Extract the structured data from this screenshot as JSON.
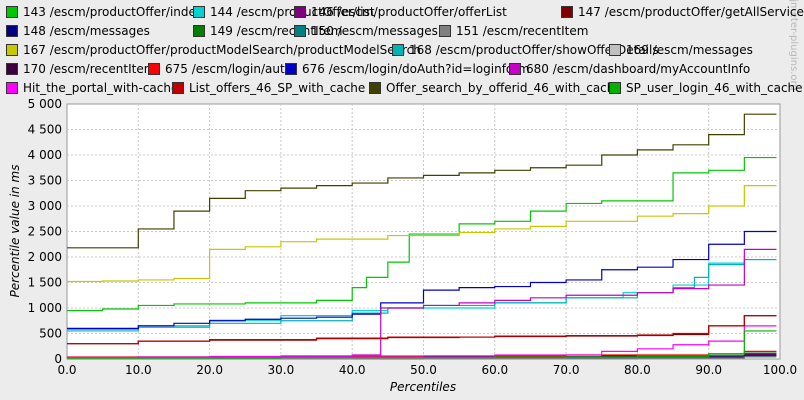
{
  "chart_data": {
    "type": "line",
    "title": "",
    "xlabel": "Percentiles",
    "ylabel": "Percentile value in ms",
    "xlim": [
      0,
      100
    ],
    "ylim": [
      0,
      5000
    ],
    "x_ticks": [
      "0.0",
      "10.0",
      "20.0",
      "30.0",
      "40.0",
      "50.0",
      "60.0",
      "70.0",
      "80.0",
      "90.0",
      "100.0"
    ],
    "y_ticks": [
      "0",
      "500",
      "1 000",
      "1 500",
      "2 000",
      "2 500",
      "3 000",
      "3 500",
      "4 000",
      "4 500",
      "5 000"
    ],
    "grid": true,
    "legend_position": "top",
    "watermark": "jmeter-plugins.org",
    "series": [
      {
        "name": "143 /escm/productOffer/index",
        "color": "#00c800",
        "steps": [
          [
            0,
            950
          ],
          [
            5,
            980
          ],
          [
            10,
            1050
          ],
          [
            15,
            1080
          ],
          [
            25,
            1100
          ],
          [
            35,
            1150
          ],
          [
            40,
            1400
          ],
          [
            42,
            1600
          ],
          [
            45,
            1900
          ],
          [
            48,
            2450
          ],
          [
            55,
            2650
          ],
          [
            60,
            2700
          ],
          [
            65,
            2900
          ],
          [
            70,
            3050
          ],
          [
            75,
            3100
          ],
          [
            85,
            3650
          ],
          [
            90,
            3700
          ],
          [
            95,
            3950
          ],
          [
            99,
            3950
          ]
        ]
      },
      {
        "name": "144 /escm/productOffer/list",
        "color": "#00d2d2",
        "steps": [
          [
            0,
            580
          ],
          [
            10,
            620
          ],
          [
            20,
            760
          ],
          [
            30,
            850
          ],
          [
            40,
            950
          ],
          [
            45,
            1000
          ],
          [
            50,
            1000
          ],
          [
            60,
            1100
          ],
          [
            70,
            1200
          ],
          [
            78,
            1300
          ],
          [
            85,
            1450
          ],
          [
            90,
            1880
          ],
          [
            95,
            1950
          ],
          [
            99,
            1950
          ]
        ]
      },
      {
        "name": "146 /escm/productOffer/offerList",
        "color": "#800080",
        "steps": [
          [
            0,
            30
          ],
          [
            20,
            35
          ],
          [
            40,
            40
          ],
          [
            60,
            50
          ],
          [
            80,
            60
          ],
          [
            95,
            80
          ],
          [
            99,
            80
          ]
        ]
      },
      {
        "name": "147 /escm/productOffer/getAllService",
        "color": "#800000",
        "steps": [
          [
            0,
            300
          ],
          [
            10,
            350
          ],
          [
            20,
            370
          ],
          [
            35,
            400
          ],
          [
            45,
            420
          ],
          [
            55,
            430
          ],
          [
            60,
            440
          ],
          [
            70,
            450
          ],
          [
            80,
            460
          ],
          [
            85,
            480
          ],
          [
            90,
            650
          ],
          [
            95,
            850
          ],
          [
            99,
            850
          ]
        ]
      },
      {
        "name": "148 /escm/messages",
        "color": "#000080",
        "steps": [
          [
            0,
            10
          ],
          [
            20,
            15
          ],
          [
            40,
            20
          ],
          [
            60,
            25
          ],
          [
            80,
            35
          ],
          [
            95,
            60
          ],
          [
            99,
            60
          ]
        ]
      },
      {
        "name": "149 /escm/recentItem",
        "color": "#008000",
        "steps": [
          [
            0,
            15
          ],
          [
            30,
            25
          ],
          [
            50,
            30
          ],
          [
            70,
            40
          ],
          [
            90,
            80
          ],
          [
            95,
            130
          ],
          [
            99,
            130
          ]
        ]
      },
      {
        "name": "150 /escm/messages",
        "color": "#008080",
        "steps": [
          [
            0,
            5
          ],
          [
            50,
            10
          ],
          [
            80,
            20
          ],
          [
            95,
            50
          ],
          [
            99,
            50
          ]
        ]
      },
      {
        "name": "151 /escm/recentItem",
        "color": "#808080",
        "steps": [
          [
            0,
            5
          ],
          [
            40,
            10
          ],
          [
            70,
            15
          ],
          [
            95,
            40
          ],
          [
            99,
            40
          ]
        ]
      },
      {
        "name": "167 /escm/productOffer/productModelSearch/productModelSearch",
        "color": "#c8c800",
        "steps": [
          [
            0,
            1520
          ],
          [
            5,
            1530
          ],
          [
            10,
            1550
          ],
          [
            15,
            1580
          ],
          [
            20,
            2150
          ],
          [
            25,
            2200
          ],
          [
            30,
            2300
          ],
          [
            35,
            2350
          ],
          [
            45,
            2420
          ],
          [
            55,
            2480
          ],
          [
            60,
            2550
          ],
          [
            65,
            2600
          ],
          [
            70,
            2700
          ],
          [
            80,
            2800
          ],
          [
            85,
            2850
          ],
          [
            90,
            3000
          ],
          [
            95,
            3400
          ],
          [
            99,
            3400
          ]
        ]
      },
      {
        "name": "168 /escm/productOffer/showOfferDetails",
        "color": "#00b4b4",
        "steps": [
          [
            0,
            550
          ],
          [
            10,
            650
          ],
          [
            20,
            700
          ],
          [
            30,
            750
          ],
          [
            40,
            900
          ],
          [
            45,
            1000
          ],
          [
            50,
            1050
          ],
          [
            60,
            1100
          ],
          [
            70,
            1200
          ],
          [
            80,
            1300
          ],
          [
            85,
            1400
          ],
          [
            88,
            1600
          ],
          [
            90,
            1850
          ],
          [
            95,
            1950
          ],
          [
            99,
            1950
          ]
        ]
      },
      {
        "name": "169 /escm/messages",
        "color": "#c0c0c0",
        "steps": [
          [
            0,
            20
          ],
          [
            20,
            30
          ],
          [
            40,
            40
          ],
          [
            60,
            60
          ],
          [
            80,
            80
          ],
          [
            95,
            120
          ],
          [
            99,
            120
          ]
        ]
      },
      {
        "name": "170 /escm/recentItem",
        "color": "#400040",
        "steps": [
          [
            0,
            25
          ],
          [
            25,
            35
          ],
          [
            50,
            45
          ],
          [
            75,
            60
          ],
          [
            95,
            100
          ],
          [
            99,
            100
          ]
        ]
      },
      {
        "name": "675 /escm/login/auth",
        "color": "#ff0000",
        "steps": [
          [
            0,
            40
          ],
          [
            30,
            50
          ],
          [
            50,
            60
          ],
          [
            70,
            80
          ],
          [
            90,
            100
          ],
          [
            95,
            150
          ],
          [
            99,
            150
          ]
        ]
      },
      {
        "name": "676 /escm/login/doAuth?id=loginform",
        "color": "#0000c8",
        "steps": [
          [
            0,
            600
          ],
          [
            10,
            650
          ],
          [
            15,
            700
          ],
          [
            20,
            750
          ],
          [
            25,
            780
          ],
          [
            30,
            800
          ],
          [
            35,
            820
          ],
          [
            40,
            880
          ],
          [
            44,
            1100
          ],
          [
            50,
            1350
          ],
          [
            55,
            1400
          ],
          [
            60,
            1420
          ],
          [
            65,
            1500
          ],
          [
            70,
            1550
          ],
          [
            75,
            1750
          ],
          [
            80,
            1800
          ],
          [
            85,
            1950
          ],
          [
            90,
            2250
          ],
          [
            95,
            2500
          ],
          [
            99,
            2500
          ]
        ]
      },
      {
        "name": "680 /escm/dashboard/myAccountInfo",
        "color": "#c800c8",
        "steps": [
          [
            0,
            30
          ],
          [
            10,
            40
          ],
          [
            20,
            50
          ],
          [
            30,
            60
          ],
          [
            40,
            80
          ],
          [
            44,
            1000
          ],
          [
            50,
            1050
          ],
          [
            55,
            1100
          ],
          [
            60,
            1150
          ],
          [
            65,
            1200
          ],
          [
            70,
            1250
          ],
          [
            80,
            1300
          ],
          [
            85,
            1380
          ],
          [
            90,
            1450
          ],
          [
            95,
            2150
          ],
          [
            99,
            2150
          ]
        ]
      },
      {
        "name": "Hit_the_portal_with-cache",
        "color": "#ff00ff",
        "steps": [
          [
            0,
            30
          ],
          [
            20,
            40
          ],
          [
            40,
            60
          ],
          [
            60,
            80
          ],
          [
            75,
            150
          ],
          [
            80,
            200
          ],
          [
            85,
            280
          ],
          [
            90,
            350
          ],
          [
            95,
            650
          ],
          [
            99,
            650
          ]
        ]
      },
      {
        "name": "List_offers_46_SP_with_cache",
        "color": "#c00000",
        "steps": [
          [
            0,
            300
          ],
          [
            10,
            350
          ],
          [
            20,
            380
          ],
          [
            35,
            410
          ],
          [
            45,
            430
          ],
          [
            60,
            450
          ],
          [
            70,
            460
          ],
          [
            80,
            470
          ],
          [
            85,
            500
          ],
          [
            90,
            650
          ],
          [
            95,
            850
          ],
          [
            99,
            850
          ]
        ]
      },
      {
        "name": "Offer_search_by_offerid_46_with_cache",
        "color": "#404000",
        "steps": [
          [
            0,
            2180
          ],
          [
            10,
            2550
          ],
          [
            15,
            2900
          ],
          [
            20,
            3150
          ],
          [
            25,
            3300
          ],
          [
            30,
            3350
          ],
          [
            35,
            3400
          ],
          [
            40,
            3450
          ],
          [
            45,
            3550
          ],
          [
            50,
            3600
          ],
          [
            55,
            3650
          ],
          [
            60,
            3700
          ],
          [
            65,
            3750
          ],
          [
            70,
            3800
          ],
          [
            75,
            4000
          ],
          [
            80,
            4100
          ],
          [
            85,
            4200
          ],
          [
            90,
            4400
          ],
          [
            95,
            4800
          ],
          [
            99,
            4800
          ]
        ]
      },
      {
        "name": "SP_user_login_46_with_cache",
        "color": "#00b400",
        "steps": [
          [
            0,
            20
          ],
          [
            30,
            30
          ],
          [
            60,
            40
          ],
          [
            80,
            60
          ],
          [
            90,
            100
          ],
          [
            95,
            550
          ],
          [
            99,
            550
          ]
        ]
      }
    ]
  }
}
